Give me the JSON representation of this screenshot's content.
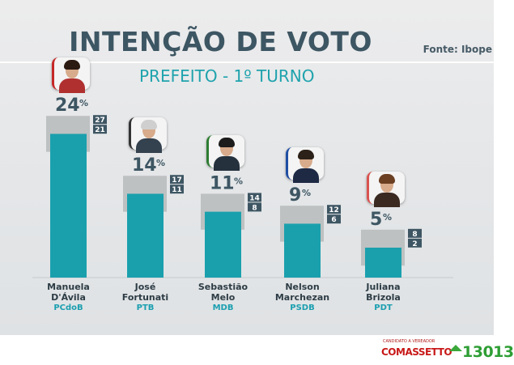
{
  "header": {
    "title": "INTENÇÃO DE VOTO",
    "subtitle": "PREFEITO - 1º TURNO",
    "source": "Fonte: Ibope"
  },
  "chart_data": {
    "type": "bar",
    "title": "INTENÇÃO DE VOTO",
    "subtitle": "PREFEITO - 1º TURNO",
    "unit": "%",
    "categories": [
      "Manuela D'Ávila",
      "José Fortunati",
      "Sebastião Melo",
      "Nelson Marchezan",
      "Juliana Brizola"
    ],
    "name_lines": [
      [
        "Manuela",
        "D'Ávila"
      ],
      [
        "José",
        "Fortunati"
      ],
      [
        "Sebastião",
        "Melo"
      ],
      [
        "Nelson",
        "Marchezan"
      ],
      [
        "Juliana",
        "Brizola"
      ]
    ],
    "parties": [
      "PCdoB",
      "PTB",
      "MDB",
      "PSDB",
      "PDT"
    ],
    "values": [
      24,
      14,
      11,
      9,
      5
    ],
    "range_max": [
      27,
      17,
      14,
      12,
      8
    ],
    "range_min": [
      21,
      11,
      8,
      6,
      2
    ],
    "ylim": [
      0,
      32
    ],
    "colors": {
      "bar": "#1aa0ad",
      "range": "#b9bcbe",
      "range_box": "#3e5663",
      "value_text": "#3d5663"
    },
    "photo_frame_colors": [
      "#c62828",
      "#333333",
      "#2e7d32",
      "#1f4fa3",
      "#d9534f"
    ]
  },
  "footer": {
    "logo_small": "CANDIDATO A VEREADOR",
    "logo_name": "COMASSETTO",
    "logo_number": "13013"
  }
}
